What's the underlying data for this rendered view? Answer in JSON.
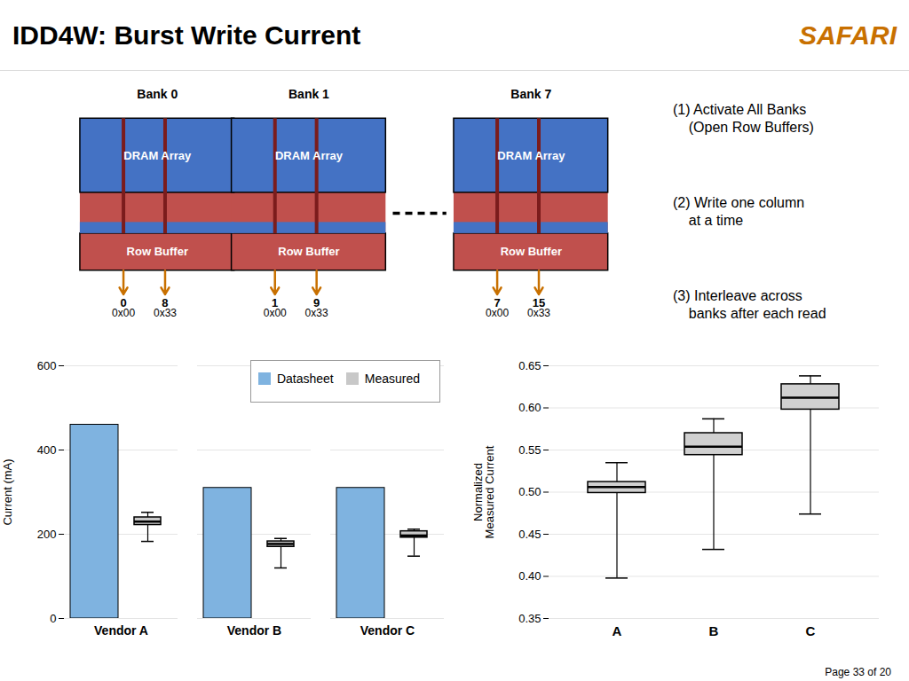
{
  "title": "IDD4W: Burst Write Current",
  "annotations": [
    {
      "text": "SAFARI",
      "color": "#c87000"
    },
    {
      "text": "Page 33 of 20"
    }
  ],
  "diagram": {
    "banks": [
      {
        "name": "Bank 0",
        "columns": [
          "0",
          "8"
        ],
        "addresses": [
          "0x00",
          "0x33"
        ]
      },
      {
        "name": "Bank 1",
        "columns": [
          "1",
          "9"
        ],
        "addresses": [
          "0x00",
          "0x33"
        ]
      },
      {
        "name": "Bank 7",
        "columns": [
          "7",
          "15"
        ],
        "addresses": [
          "0x00",
          "0x33"
        ]
      }
    ],
    "array_label": "DRAM Array",
    "buffer_label": "Row Buffer",
    "colors": {
      "array": "#4472c4",
      "buffer": "#c0504d",
      "columns": "#7b1c1c",
      "arrows": "#c87000"
    },
    "steps": [
      "(1) Activate All Banks\n    (Open Row Buffers)",
      "(2) Write one column\n    at a time",
      "(3) Interleave across\n    banks after each read"
    ]
  },
  "chart_data": [
    {
      "type": "bar",
      "categories": [
        "Vendor A",
        "Vendor B",
        "Vendor C"
      ],
      "series": [
        {
          "name": "Datasheet",
          "type": "bar",
          "color": "#7fb3e0",
          "values": [
            460,
            310,
            310
          ]
        },
        {
          "name": "Measured",
          "type": "box",
          "color": "#c8c8c8",
          "values": [
            {
              "median": 230,
              "q1": 222,
              "q3": 240,
              "whisker_low": 183,
              "whisker_high": 252
            },
            {
              "median": 177,
              "q1": 170,
              "q3": 183,
              "whisker_low": 120,
              "whisker_high": 190
            },
            {
              "median": 197,
              "q1": 192,
              "q3": 207,
              "whisker_low": 148,
              "whisker_high": 212
            }
          ]
        }
      ],
      "ylim": [
        0,
        600
      ],
      "yticks": [
        0,
        200,
        400,
        600
      ],
      "ylabel": "Current (mA)",
      "grid": true,
      "legend": "upper right"
    },
    {
      "type": "box",
      "categories": [
        "A",
        "B",
        "C"
      ],
      "color": "#d0d0d0",
      "values": [
        {
          "median": 0.506,
          "q1": 0.499,
          "q3": 0.512,
          "whisker_low": 0.398,
          "whisker_high": 0.535
        },
        {
          "median": 0.554,
          "q1": 0.544,
          "q3": 0.57,
          "whisker_low": 0.432,
          "whisker_high": 0.587
        },
        {
          "median": 0.612,
          "q1": 0.598,
          "q3": 0.628,
          "whisker_low": 0.474,
          "whisker_high": 0.638
        }
      ],
      "ylim": [
        0.35,
        0.65
      ],
      "yticks": [
        0.35,
        {
          "value": 0.4,
          "label": "0.40"
        },
        0.45,
        {
          "value": 0.5,
          "label": "0.50"
        },
        0.55,
        {
          "value": 0.6,
          "label": "0.60"
        },
        0.65
      ],
      "ylabel": "Normalized\nMeasured Current",
      "grid": true
    }
  ]
}
